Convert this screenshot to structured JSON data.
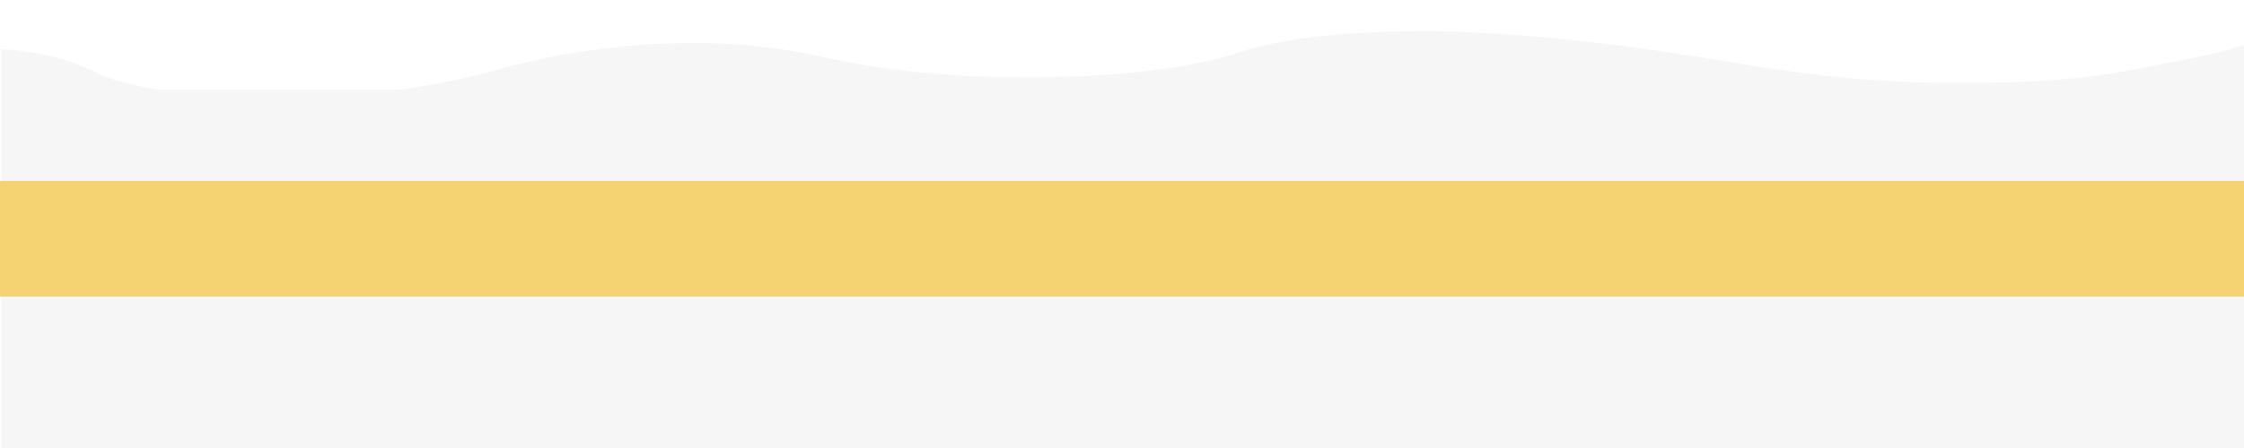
{
  "colors": {
    "background": "#ffffff",
    "panel": "#f6f6f6",
    "band": "#f6d372"
  }
}
